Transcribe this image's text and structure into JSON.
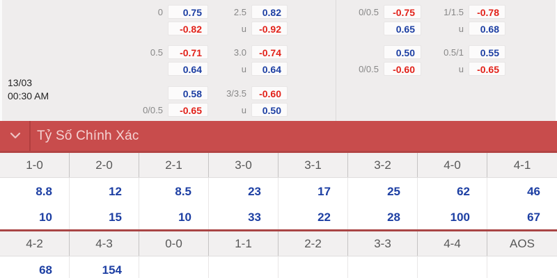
{
  "colors": {
    "blue": "#1d3fa3",
    "red": "#e2221a",
    "bar_red": "#c84c4c"
  },
  "match": {
    "date": "13/03",
    "time": "00:30 AM"
  },
  "odds_panel": {
    "columns": [
      {
        "name": "handicap-a",
        "cells": [
          {
            "label": "0",
            "value": "0.75"
          },
          {
            "label": "",
            "value": "-0.82"
          },
          {
            "label": "0.5",
            "value": "-0.71"
          },
          {
            "label": "",
            "value": "0.64"
          },
          {
            "label": "",
            "value": "0.58"
          },
          {
            "label": "0/0.5",
            "value": "-0.65"
          }
        ]
      },
      {
        "name": "over-under-a",
        "cells": [
          {
            "label": "2.5",
            "value": "0.82"
          },
          {
            "label": "u",
            "value": "-0.92"
          },
          {
            "label": "3.0",
            "value": "-0.74"
          },
          {
            "label": "u",
            "value": "0.64"
          },
          {
            "label": "3/3.5",
            "value": "-0.60"
          },
          {
            "label": "u",
            "value": "0.50"
          }
        ]
      },
      {
        "name": "handicap-b",
        "cells": [
          {
            "label": "0/0.5",
            "value": "-0.75"
          },
          {
            "label": "",
            "value": "0.65"
          },
          {
            "label": "",
            "value": "0.50"
          },
          {
            "label": "0/0.5",
            "value": "-0.60"
          },
          null,
          null
        ]
      },
      {
        "name": "over-under-b",
        "cells": [
          {
            "label": "1/1.5",
            "value": "-0.78"
          },
          {
            "label": "u",
            "value": "0.68"
          },
          {
            "label": "0.5/1",
            "value": "0.55"
          },
          {
            "label": "u",
            "value": "-0.65"
          },
          null,
          null
        ]
      }
    ]
  },
  "section_header": {
    "title": "Tỷ Số Chính Xác",
    "icon": "chevron-down-icon"
  },
  "correct_score_table": {
    "sections": [
      {
        "headers": [
          "1-0",
          "2-0",
          "2-1",
          "3-0",
          "3-1",
          "3-2",
          "4-0",
          "4-1"
        ],
        "rows": [
          [
            "8.8",
            "12",
            "8.5",
            "23",
            "17",
            "25",
            "62",
            "46"
          ],
          [
            "10",
            "15",
            "10",
            "33",
            "22",
            "28",
            "100",
            "67"
          ]
        ]
      },
      {
        "headers": [
          "4-2",
          "4-3",
          "0-0",
          "1-1",
          "2-2",
          "3-3",
          "4-4",
          "AOS"
        ],
        "rows": [
          [
            "68",
            "154",
            "",
            "",
            "",
            "",
            "",
            ""
          ]
        ]
      }
    ]
  }
}
